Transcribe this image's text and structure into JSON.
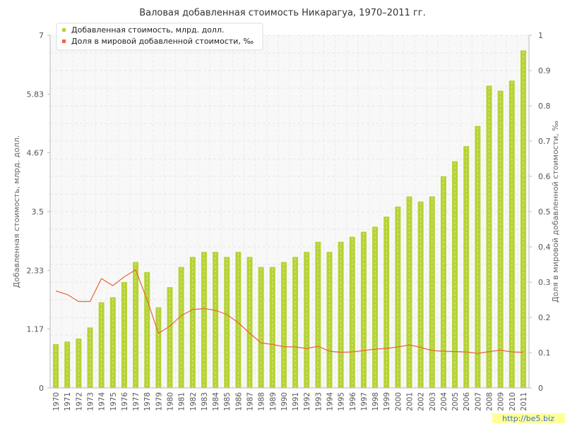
{
  "chart_data": {
    "type": "bar",
    "title": "Валовая добавленная стоимость Никарагуа, 1970–2011 гг.",
    "ylabel_left": "Добавленная стоимость, млрд. долл.",
    "ylabel_right": "Доля в мировой добавленной стоимости, ‰",
    "y_left_ticks": [
      "0",
      "1.17",
      "2.33",
      "3.5",
      "4.67",
      "5.83",
      "7"
    ],
    "y_right_ticks": [
      "0",
      "0.1",
      "0.2",
      "0.3",
      "0.4",
      "0.5",
      "0.6",
      "0.7",
      "0.8",
      "0.9",
      "1"
    ],
    "ylim_left": [
      0,
      7
    ],
    "ylim_right": [
      0,
      1
    ],
    "categories": [
      "1970",
      "1971",
      "1972",
      "1973",
      "1974",
      "1975",
      "1976",
      "1977",
      "1978",
      "1979",
      "1980",
      "1981",
      "1982",
      "1983",
      "1984",
      "1985",
      "1986",
      "1987",
      "1988",
      "1989",
      "1990",
      "1991",
      "1992",
      "1993",
      "1994",
      "1995",
      "1996",
      "1997",
      "1998",
      "1999",
      "2000",
      "2001",
      "2002",
      "2003",
      "2004",
      "2005",
      "2006",
      "2007",
      "2008",
      "2009",
      "2010",
      "2011"
    ],
    "series": [
      {
        "name": "Добавленная стоимость, млрд. долл.",
        "type": "bar",
        "axis": "left",
        "color": "#b5d334",
        "values": [
          0.87,
          0.92,
          0.98,
          1.2,
          1.7,
          1.8,
          2.1,
          2.5,
          2.3,
          1.6,
          2.0,
          2.4,
          2.6,
          2.7,
          2.7,
          2.6,
          2.7,
          2.6,
          2.4,
          2.4,
          2.5,
          2.6,
          2.7,
          2.9,
          2.7,
          2.9,
          3.0,
          3.1,
          3.2,
          3.4,
          3.6,
          3.8,
          3.7,
          3.8,
          4.2,
          4.5,
          4.8,
          5.2,
          6.0,
          5.9,
          6.1,
          6.7
        ]
      },
      {
        "name": "Доля в мировой добавленной стоимости, ‰",
        "type": "line",
        "axis": "right",
        "color": "#e8663c",
        "values": [
          0.275,
          0.265,
          0.245,
          0.245,
          0.31,
          0.29,
          0.315,
          0.335,
          0.25,
          0.155,
          0.175,
          0.205,
          0.222,
          0.225,
          0.22,
          0.208,
          0.185,
          0.155,
          0.128,
          0.123,
          0.117,
          0.116,
          0.112,
          0.118,
          0.104,
          0.101,
          0.102,
          0.106,
          0.11,
          0.112,
          0.116,
          0.122,
          0.115,
          0.106,
          0.104,
          0.103,
          0.102,
          0.098,
          0.103,
          0.107,
          0.102,
          0.101
        ]
      }
    ],
    "legend_position": "top-left",
    "grid": true
  },
  "watermark": "http://be5.biz"
}
